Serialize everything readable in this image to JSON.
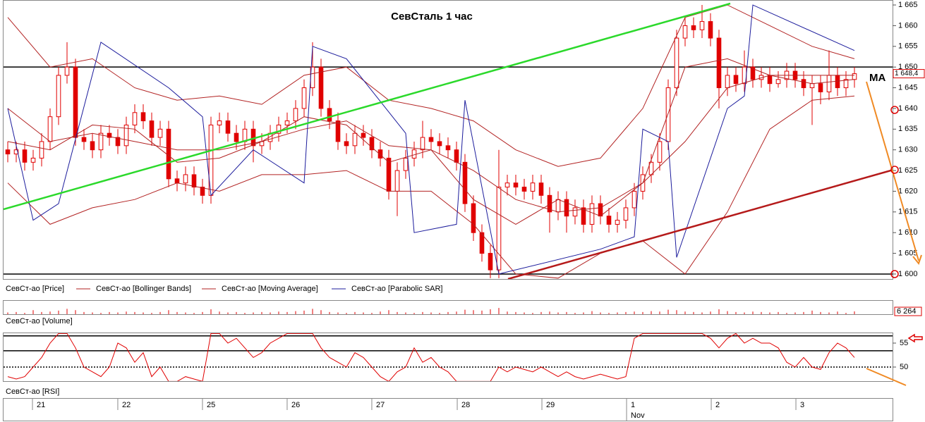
{
  "chart_data": [
    {
      "type": "candlestick",
      "title": "СевСталь   1 час",
      "annotation": "MA",
      "xlim": [
        -0.5,
        104.5
      ],
      "xticks": [
        {
          "value": 3.25,
          "label": "21"
        },
        {
          "value": 13.33,
          "label": "22"
        },
        {
          "value": 23.33,
          "label": "25"
        },
        {
          "value": 33.33,
          "label": "26"
        },
        {
          "value": 43.33,
          "label": "27"
        },
        {
          "value": 53.42,
          "label": "28"
        },
        {
          "value": 63.42,
          "label": "29"
        },
        {
          "value": 73.42,
          "label": "1"
        },
        {
          "value": 83.42,
          "label": "2"
        },
        {
          "value": 93.42,
          "label": "3"
        }
      ],
      "month_ticks": [
        {
          "value": 73.42,
          "label": "Nov"
        }
      ],
      "ylim": [
        1598.8,
        1666.2
      ],
      "yticks": [
        {
          "value": 1600,
          "label": "1 600"
        },
        {
          "value": 1605,
          "label": "1 605"
        },
        {
          "value": 1610,
          "label": "1 610"
        },
        {
          "value": 1615,
          "label": "1 615"
        },
        {
          "value": 1620,
          "label": "1 620"
        },
        {
          "value": 1625,
          "label": "1 625"
        },
        {
          "value": 1630,
          "label": "1 630"
        },
        {
          "value": 1635,
          "label": "1 635"
        },
        {
          "value": 1640,
          "label": "1 640"
        },
        {
          "value": 1645,
          "label": "1 645"
        },
        {
          "value": 1650,
          "label": "1 650"
        },
        {
          "value": 1655,
          "label": "1 655"
        },
        {
          "value": 1660,
          "label": "1 660"
        },
        {
          "value": 1665,
          "label": "1 665"
        }
      ],
      "grid": false,
      "hlines": [
        1650,
        1600
      ],
      "last_price": {
        "value": 1648.4,
        "label": "1 648,4"
      },
      "series": [
        {
          "name": "СевСт-ао [Price]",
          "color": "#e00000",
          "open": [
            1630,
            1629,
            1630,
            1627,
            1628,
            1632,
            1638,
            1648,
            1650,
            1633,
            1632,
            1630,
            1634,
            1633,
            1631,
            1636,
            1639,
            1637,
            1633,
            1635,
            1623,
            1622,
            1624,
            1621,
            1619,
            1636,
            1637,
            1634,
            1632,
            1635,
            1631,
            1632,
            1634,
            1636,
            1637,
            1640,
            1645,
            1650,
            1640,
            1637,
            1632,
            1631,
            1634,
            1633,
            1630,
            1628,
            1620,
            1625,
            1628,
            1630,
            1633,
            1632,
            1631,
            1630,
            1627,
            1617,
            1610,
            1605,
            1601,
            1621,
            1622,
            1621,
            1620,
            1622,
            1619,
            1615,
            1618,
            1614,
            1616,
            1612,
            1617,
            1614,
            1612,
            1613,
            1616,
            1620,
            1624,
            1627,
            1632,
            1645,
            1657,
            1660,
            1659,
            1661,
            1657,
            1645,
            1648,
            1646,
            1650,
            1647,
            1648,
            1646,
            1647,
            1649,
            1647,
            1645,
            1646,
            1644,
            1648,
            1645,
            1647
          ],
          "high": [
            1632,
            1632,
            1632,
            1630,
            1634,
            1640,
            1650,
            1656,
            1652,
            1635,
            1634,
            1636,
            1636,
            1635,
            1638,
            1641,
            1641,
            1639,
            1637,
            1637,
            1625,
            1626,
            1626,
            1623,
            1638,
            1639,
            1639,
            1636,
            1637,
            1637,
            1634,
            1636,
            1638,
            1639,
            1642,
            1647,
            1656,
            1652,
            1642,
            1639,
            1634,
            1636,
            1636,
            1635,
            1632,
            1630,
            1627,
            1630,
            1632,
            1637,
            1635,
            1634,
            1633,
            1632,
            1629,
            1619,
            1612,
            1607,
            1630,
            1624,
            1624,
            1623,
            1624,
            1624,
            1621,
            1620,
            1620,
            1618,
            1618,
            1619,
            1619,
            1616,
            1615,
            1618,
            1622,
            1626,
            1629,
            1634,
            1647,
            1659,
            1662,
            1662,
            1665,
            1663,
            1659,
            1650,
            1650,
            1654,
            1652,
            1650,
            1650,
            1649,
            1651,
            1651,
            1649,
            1648,
            1648,
            1654,
            1650,
            1649,
            1650
          ],
          "low": [
            1627,
            1627,
            1625,
            1625,
            1626,
            1630,
            1636,
            1646,
            1631,
            1630,
            1628,
            1628,
            1631,
            1629,
            1629,
            1634,
            1635,
            1631,
            1631,
            1621,
            1620,
            1620,
            1619,
            1617,
            1617,
            1634,
            1632,
            1630,
            1630,
            1627,
            1629,
            1630,
            1632,
            1634,
            1635,
            1638,
            1643,
            1638,
            1635,
            1630,
            1629,
            1629,
            1631,
            1628,
            1626,
            1618,
            1614,
            1623,
            1626,
            1628,
            1630,
            1629,
            1628,
            1625,
            1615,
            1608,
            1603,
            1599,
            1599,
            1619,
            1619,
            1618,
            1618,
            1617,
            1610,
            1613,
            1610,
            1612,
            1610,
            1610,
            1612,
            1610,
            1610,
            1611,
            1614,
            1618,
            1622,
            1625,
            1630,
            1643,
            1655,
            1657,
            1657,
            1655,
            1640,
            1643,
            1644,
            1644,
            1645,
            1645,
            1644,
            1645,
            1645,
            1645,
            1643,
            1636,
            1641,
            1642,
            1643,
            1643,
            1645
          ],
          "close": [
            1629,
            1630,
            1627,
            1628,
            1632,
            1638,
            1648,
            1650,
            1633,
            1632,
            1630,
            1634,
            1633,
            1631,
            1636,
            1639,
            1637,
            1633,
            1635,
            1623,
            1622,
            1624,
            1621,
            1619,
            1636,
            1637,
            1634,
            1632,
            1635,
            1631,
            1632,
            1634,
            1636,
            1637,
            1640,
            1645,
            1650,
            1640,
            1637,
            1632,
            1631,
            1634,
            1633,
            1630,
            1628,
            1620,
            1625,
            1628,
            1630,
            1633,
            1632,
            1631,
            1630,
            1627,
            1617,
            1610,
            1605,
            1601,
            1621,
            1622,
            1621,
            1620,
            1622,
            1619,
            1615,
            1618,
            1614,
            1616,
            1612,
            1617,
            1614,
            1612,
            1613,
            1616,
            1620,
            1624,
            1627,
            1632,
            1645,
            1657,
            1660,
            1659,
            1661,
            1657,
            1645,
            1648,
            1646,
            1650,
            1647,
            1648,
            1646,
            1647,
            1649,
            1647,
            1645,
            1646,
            1644,
            1648,
            1645,
            1647,
            1648.4
          ]
        },
        {
          "name": "СевСт-ао [Bollinger Bands]",
          "color": "#b22222",
          "x": [
            0,
            5,
            10,
            15,
            20,
            25,
            30,
            35,
            40,
            45,
            50,
            55,
            60,
            65,
            70,
            75,
            80,
            85,
            90,
            95,
            100
          ],
          "upper": [
            1662,
            1650,
            1652,
            1645,
            1642,
            1643,
            1641,
            1648,
            1650,
            1642,
            1640,
            1637,
            1630,
            1626,
            1628,
            1640,
            1662,
            1665,
            1660,
            1655,
            1652
          ],
          "middle": [
            1640,
            1632,
            1634,
            1632,
            1630,
            1630,
            1632,
            1635,
            1637,
            1631,
            1630,
            1625,
            1618,
            1615,
            1616,
            1622,
            1632,
            1645,
            1648,
            1648,
            1648
          ],
          "lower": [
            1622,
            1612,
            1616,
            1618,
            1622,
            1620,
            1624,
            1624,
            1625,
            1620,
            1620,
            1612,
            1600,
            1599,
            1605,
            1608,
            1600,
            1615,
            1635,
            1642,
            1643
          ]
        },
        {
          "name": "СевСт-ао [Moving Average]",
          "color": "#b22222",
          "x": [
            0,
            5,
            10,
            15,
            20,
            25,
            30,
            35,
            40,
            45,
            50,
            55,
            60,
            65,
            70,
            75,
            80,
            85,
            90,
            95,
            100
          ],
          "values": [
            1632,
            1630,
            1636,
            1635,
            1627,
            1628,
            1632,
            1638,
            1636,
            1627,
            1630,
            1618,
            1612,
            1618,
            1614,
            1622,
            1650,
            1652,
            1648,
            1646,
            1647
          ]
        },
        {
          "name": "СевСт-ао [Parabolic SAR]",
          "color": "#1c1c9c",
          "x": [
            0,
            3,
            6,
            11,
            19,
            23,
            24,
            29,
            35,
            36,
            40,
            47,
            48,
            53,
            54,
            58,
            70,
            74,
            75,
            78,
            79,
            85,
            87,
            88,
            100
          ],
          "values": [
            1640,
            1613,
            1617,
            1656,
            1645,
            1638,
            1619,
            1630,
            1622,
            1655,
            1652,
            1634,
            1610,
            1612,
            1642,
            1600,
            1606,
            1609,
            1635,
            1632,
            1604,
            1640,
            1643,
            1665,
            1654
          ]
        }
      ]
    },
    {
      "type": "bar",
      "name": "СевСт-ао [Volume]",
      "color": "#e00000",
      "ylim": [
        0,
        30000
      ],
      "last_label": {
        "value": 6264,
        "label": "6 264"
      },
      "values": [
        4000,
        5000,
        3000,
        9000,
        5000,
        6000,
        8000,
        12000,
        9000,
        5000,
        4000,
        3000,
        5000,
        4000,
        6000,
        5000,
        4000,
        3000,
        5000,
        9000,
        5000,
        4000,
        3000,
        5000,
        11000,
        6000,
        4000,
        5000,
        3000,
        4000,
        5000,
        4000,
        6000,
        5000,
        7000,
        8000,
        12000,
        9000,
        5000,
        4000,
        3000,
        5000,
        4000,
        3000,
        6000,
        9000,
        5000,
        4000,
        3000,
        5000,
        4000,
        3000,
        5000,
        6000,
        10000,
        9000,
        8000,
        11000,
        14000,
        6000,
        5000,
        4000,
        3000,
        5000,
        6000,
        4000,
        5000,
        3000,
        4000,
        7000,
        4000,
        3000,
        4000,
        5000,
        6000,
        5000,
        7000,
        6000,
        10000,
        9000,
        6000,
        5000,
        4000,
        6000,
        11000,
        7000,
        5000,
        4000,
        6000,
        5000,
        4000,
        5000,
        3000,
        4000,
        5000,
        8000,
        5000,
        4000,
        6000,
        3000,
        6264
      ]
    },
    {
      "type": "line",
      "name": "СевСт-ао [RSI]",
      "color": "#e00000",
      "ylim": [
        47.06,
        57.06
      ],
      "yticks": [
        50,
        55
      ],
      "levels": [
        56.5,
        53.4,
        50
      ],
      "values": [
        48,
        47.5,
        48,
        50,
        52,
        55,
        57,
        57,
        54,
        50,
        49,
        48,
        50,
        55,
        54,
        51,
        53,
        48,
        50,
        47,
        47,
        48,
        47.5,
        47,
        57,
        57,
        55,
        56,
        54,
        52,
        53,
        55,
        56,
        57,
        57,
        57,
        57,
        54,
        52,
        51,
        50,
        53,
        52,
        50,
        48,
        47,
        49,
        50,
        54,
        51,
        52,
        50,
        49,
        47,
        47,
        47,
        47,
        47,
        50,
        49,
        50,
        49.5,
        49,
        50,
        49,
        48,
        49,
        48,
        47.5,
        48,
        48.5,
        48,
        47.5,
        48,
        56,
        57,
        57,
        57,
        57,
        57,
        57,
        57,
        57,
        56,
        54,
        56,
        57,
        55,
        56,
        55,
        55,
        54,
        51,
        50,
        52,
        50,
        49.5,
        53,
        55,
        54,
        52
      ]
    }
  ]
}
